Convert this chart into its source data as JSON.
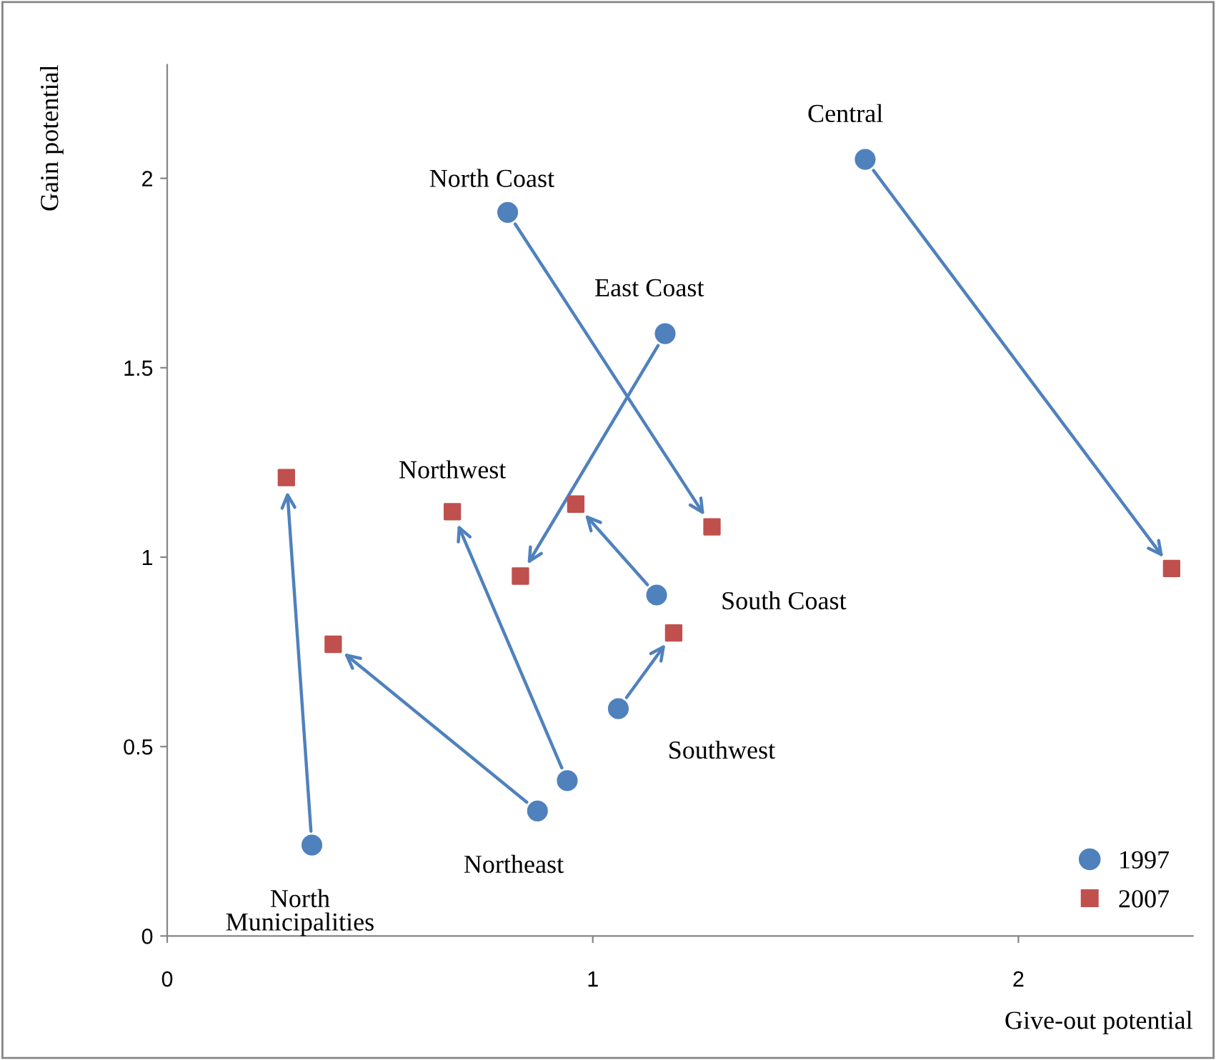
{
  "chart_data": {
    "type": "scatter",
    "xlabel": "Give-out potential",
    "ylabel": "Gain potential",
    "series": [
      {
        "name": "1997",
        "color": "#4f81bd",
        "marker": "circle",
        "x": [
          1.64,
          0.8,
          1.17,
          1.15,
          1.06,
          0.87,
          0.94,
          0.34
        ],
        "values": [
          2.05,
          1.91,
          1.59,
          0.9,
          0.6,
          0.33,
          0.41,
          0.24
        ]
      },
      {
        "name": "2007",
        "color": "#c0504d",
        "marker": "square",
        "x": [
          2.36,
          1.28,
          0.83,
          0.96,
          1.19,
          0.39,
          0.67,
          0.28
        ],
        "values": [
          0.97,
          1.08,
          0.95,
          1.14,
          0.8,
          0.77,
          1.12,
          1.21
        ]
      }
    ],
    "annotations": [
      {
        "text": "Central",
        "x": 1.64,
        "y": 2.05
      },
      {
        "text": "North Coast",
        "x": 0.8,
        "y": 1.91
      },
      {
        "text": "East Coast",
        "x": 1.17,
        "y": 1.59
      },
      {
        "text": "South Coast",
        "x": 1.15,
        "y": 0.9
      },
      {
        "text": "Southwest",
        "x": 1.06,
        "y": 0.6
      },
      {
        "text": "Northeast",
        "x": 0.87,
        "y": 0.33
      },
      {
        "text": "Northwest",
        "x": 0.67,
        "y": 1.12
      },
      {
        "text": "North\nMunicipalities",
        "x": 0.34,
        "y": 0.24
      }
    ],
    "xlim": [
      0,
      2.41
    ],
    "ylim": [
      0,
      2.3
    ],
    "xticks": [
      0,
      1,
      2
    ],
    "yticks": [
      0,
      0.5,
      1,
      1.5,
      2
    ],
    "grid": false,
    "legend": "bottom right"
  }
}
